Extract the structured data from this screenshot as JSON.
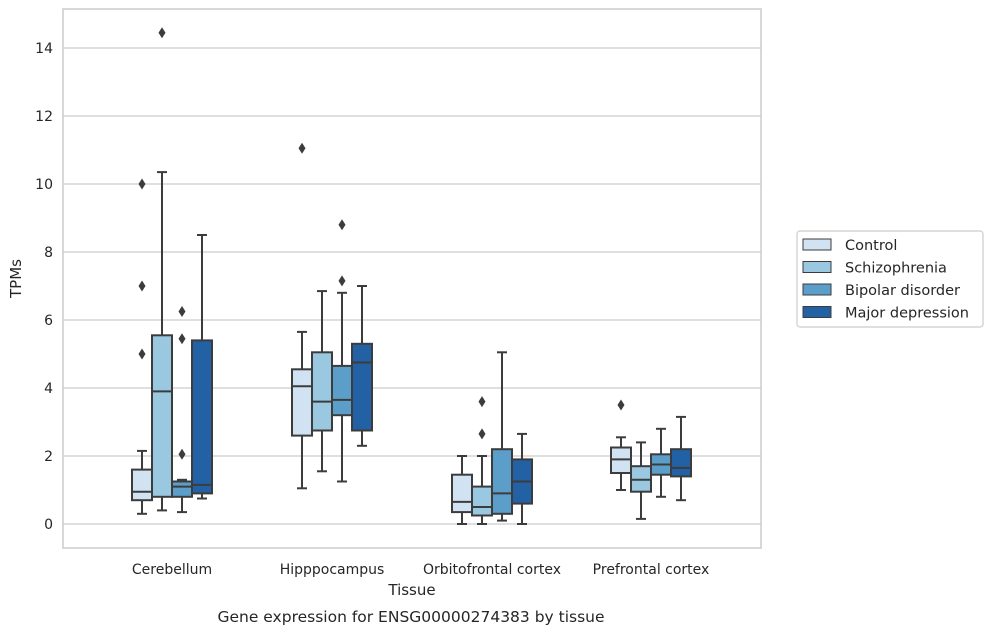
{
  "caption": "Gene expression for ENSG00000274383 by tissue",
  "chart_data": {
    "type": "box",
    "xlabel": "Tissue",
    "ylabel": "TPMs",
    "ylim": [
      -0.7,
      15.2
    ],
    "yticks": [
      0,
      2,
      4,
      6,
      8,
      10,
      12,
      14
    ],
    "grid": "horizontal",
    "legend_position": "right",
    "categories": [
      "Cerebellum",
      "Hipppocampus",
      "Orbitofrontal cortex",
      "Prefrontal cortex"
    ],
    "series": [
      {
        "name": "Control",
        "color": "#d1e2f2",
        "boxes": [
          {
            "whislo": 0.3,
            "q1": 0.7,
            "med": 0.95,
            "q3": 1.6,
            "whishi": 2.15,
            "fliers": [
              10.0,
              7.0,
              5.0
            ]
          },
          {
            "whislo": 1.05,
            "q1": 2.6,
            "med": 4.05,
            "q3": 4.55,
            "whishi": 5.65,
            "fliers": [
              11.05
            ]
          },
          {
            "whislo": 0.0,
            "q1": 0.35,
            "med": 0.65,
            "q3": 1.45,
            "whishi": 2.0,
            "fliers": []
          },
          {
            "whislo": 1.0,
            "q1": 1.5,
            "med": 1.9,
            "q3": 2.25,
            "whishi": 2.55,
            "fliers": [
              3.5
            ]
          }
        ]
      },
      {
        "name": "Schizophrenia",
        "color": "#9ac8e0",
        "boxes": [
          {
            "whislo": 0.4,
            "q1": 0.8,
            "med": 3.9,
            "q3": 5.55,
            "whishi": 10.35,
            "fliers": [
              14.45
            ]
          },
          {
            "whislo": 1.55,
            "q1": 2.75,
            "med": 3.6,
            "q3": 5.05,
            "whishi": 6.85,
            "fliers": []
          },
          {
            "whislo": 0.0,
            "q1": 0.25,
            "med": 0.5,
            "q3": 1.1,
            "whishi": 2.0,
            "fliers": [
              3.6,
              2.65
            ]
          },
          {
            "whislo": 0.15,
            "q1": 0.95,
            "med": 1.3,
            "q3": 1.7,
            "whishi": 2.4,
            "fliers": []
          }
        ]
      },
      {
        "name": "Bipolar disorder",
        "color": "#5b9ec9",
        "boxes": [
          {
            "whislo": 0.35,
            "q1": 0.8,
            "med": 1.1,
            "q3": 1.25,
            "whishi": 1.3,
            "fliers": [
              6.25,
              5.45,
              2.05
            ]
          },
          {
            "whislo": 1.25,
            "q1": 3.2,
            "med": 3.65,
            "q3": 4.65,
            "whishi": 6.8,
            "fliers": [
              8.8,
              7.15
            ]
          },
          {
            "whislo": 0.1,
            "q1": 0.3,
            "med": 0.9,
            "q3": 2.2,
            "whishi": 5.05,
            "fliers": []
          },
          {
            "whislo": 0.8,
            "q1": 1.45,
            "med": 1.75,
            "q3": 2.05,
            "whishi": 2.8,
            "fliers": []
          }
        ]
      },
      {
        "name": "Major depression",
        "color": "#2361a5",
        "boxes": [
          {
            "whislo": 0.75,
            "q1": 0.9,
            "med": 1.15,
            "q3": 5.4,
            "whishi": 8.5,
            "fliers": []
          },
          {
            "whislo": 2.3,
            "q1": 2.75,
            "med": 4.75,
            "q3": 5.3,
            "whishi": 7.0,
            "fliers": []
          },
          {
            "whislo": 0.0,
            "q1": 0.6,
            "med": 1.25,
            "q3": 1.9,
            "whishi": 2.65,
            "fliers": []
          },
          {
            "whislo": 0.7,
            "q1": 1.4,
            "med": 1.65,
            "q3": 2.2,
            "whishi": 3.15,
            "fliers": []
          }
        ]
      }
    ]
  }
}
